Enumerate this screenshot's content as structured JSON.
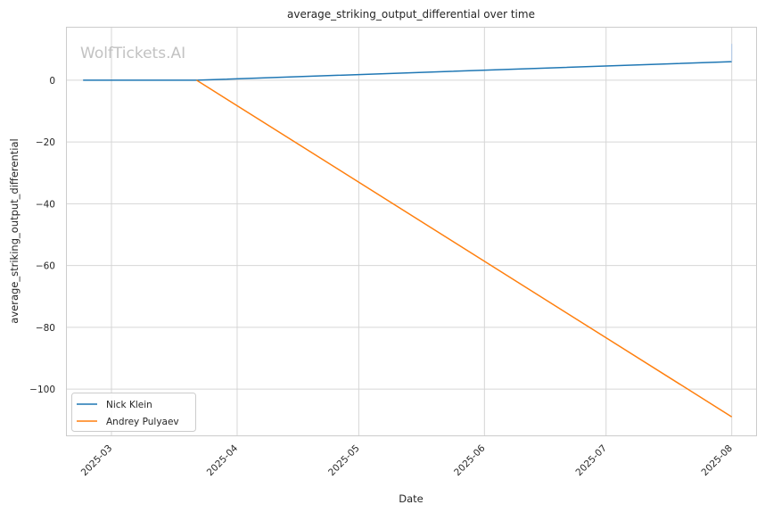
{
  "watermark": "WolfTickets.AI",
  "chart_data": {
    "type": "line",
    "title": "average_striking_output_differential over time",
    "xlabel": "Date",
    "ylabel": "average_striking_output_differential",
    "x_ticks": [
      "2025-03",
      "2025-04",
      "2025-05",
      "2025-06",
      "2025-07",
      "2025-08"
    ],
    "x_tick_dates": [
      "2025-03-01",
      "2025-04-01",
      "2025-05-01",
      "2025-06-01",
      "2025-07-01",
      "2025-08-01"
    ],
    "xlim": [
      "2025-02-18",
      "2025-08-07"
    ],
    "y_ticks": [
      0,
      -20,
      -40,
      -60,
      -80,
      -100
    ],
    "y_tick_labels": [
      "0",
      "−20",
      "−40",
      "−60",
      "−80",
      "−100"
    ],
    "ylim": [
      -115,
      17
    ],
    "grid": true,
    "legend": "bottom-left",
    "series": [
      {
        "name": "Nick Klein",
        "color": "#1f77b4",
        "points": [
          [
            "2025-02-22",
            0
          ],
          [
            "2025-03-22",
            0
          ],
          [
            "2025-08-01",
            6
          ]
        ]
      },
      {
        "name": "Andrey Pulyaev",
        "color": "#ff7f0e",
        "points": [
          [
            "2025-03-22",
            0
          ],
          [
            "2025-08-01",
            -109
          ]
        ]
      }
    ]
  }
}
